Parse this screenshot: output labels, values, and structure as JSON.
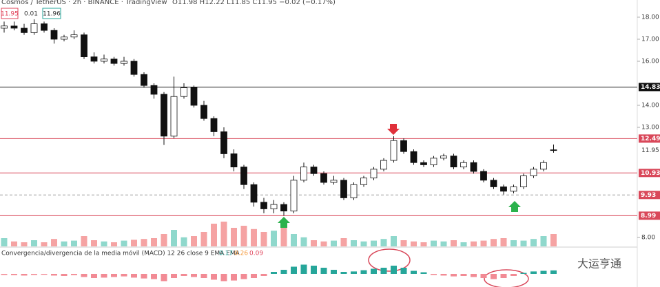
{
  "chart_data": {
    "type": "candlestick",
    "title": "Cosmos / TetherUS · 2h · BINANCE · TradingView",
    "ohlc_text": "O11.98 H12.22 L11.85 C11.95 −0.02 (−0.17%)",
    "quote_boxes": [
      "11.95",
      "0.01",
      "11.96"
    ],
    "ylim": [
      7.69,
      18.78
    ],
    "yticks": [
      {
        "value": 8,
        "label": "8.00"
      },
      {
        "value": 13,
        "label": "13.00"
      },
      {
        "value": 14,
        "label": "14.00"
      },
      {
        "value": 16,
        "label": "16.00"
      },
      {
        "value": 17,
        "label": "17.00"
      },
      {
        "value": 18,
        "label": "18.00"
      }
    ],
    "up_color": "#ffffff",
    "down_color": "#111111",
    "wick_color": "#111111",
    "open": [
      17.5,
      17.6,
      17.5,
      17.3,
      17.7,
      17.4,
      17.0,
      17.1,
      17.2,
      16.2,
      16.0,
      16.1,
      15.9,
      16.0,
      15.4,
      14.9,
      14.5,
      12.6,
      14.4,
      14.8,
      14.0,
      13.4,
      12.8,
      11.8,
      11.2,
      10.4,
      9.6,
      9.3,
      9.5,
      9.2,
      10.6,
      11.2,
      10.9,
      10.5,
      10.6,
      9.8,
      10.4,
      10.7,
      11.1,
      11.5,
      12.4,
      11.9,
      11.4,
      11.3,
      11.6,
      11.7,
      11.2,
      11.4,
      11.0,
      10.6,
      10.3,
      10.1,
      10.3,
      10.8,
      11.1,
      11.98
    ],
    "high": [
      17.8,
      17.8,
      17.7,
      17.9,
      17.8,
      17.5,
      17.2,
      17.4,
      17.3,
      16.4,
      16.3,
      16.2,
      16.2,
      16.1,
      15.5,
      15.0,
      14.6,
      15.3,
      15.0,
      14.9,
      14.2,
      13.5,
      13.0,
      12.0,
      11.3,
      10.5,
      9.8,
      9.7,
      9.6,
      10.8,
      11.4,
      11.3,
      11.0,
      10.8,
      10.7,
      10.5,
      10.8,
      11.2,
      11.6,
      12.6,
      12.5,
      12.0,
      11.5,
      11.7,
      11.8,
      11.8,
      11.5,
      11.5,
      11.1,
      10.7,
      10.4,
      10.4,
      10.9,
      11.2,
      11.5,
      12.22
    ],
    "low": [
      17.3,
      17.4,
      17.2,
      17.2,
      17.3,
      16.8,
      16.9,
      17.0,
      16.1,
      15.9,
      15.9,
      15.8,
      15.8,
      15.3,
      14.8,
      14.3,
      12.2,
      12.5,
      14.3,
      13.9,
      13.3,
      12.6,
      11.6,
      11.0,
      10.2,
      9.4,
      9.1,
      9.1,
      8.99,
      9.1,
      10.5,
      10.8,
      10.4,
      10.4,
      9.7,
      9.7,
      10.3,
      10.6,
      11.0,
      11.4,
      11.8,
      11.3,
      11.2,
      11.2,
      11.5,
      11.1,
      11.1,
      10.9,
      10.5,
      10.2,
      9.95,
      10.0,
      10.2,
      10.7,
      11.0,
      11.85
    ],
    "close": [
      17.6,
      17.5,
      17.3,
      17.7,
      17.4,
      17.0,
      17.1,
      17.2,
      16.2,
      16.0,
      16.1,
      15.9,
      16.0,
      15.4,
      14.9,
      14.5,
      12.6,
      14.4,
      14.8,
      14.0,
      13.4,
      12.8,
      11.8,
      11.2,
      10.4,
      9.6,
      9.3,
      9.5,
      9.2,
      10.6,
      11.2,
      10.9,
      10.5,
      10.6,
      9.8,
      10.4,
      10.7,
      11.1,
      11.5,
      12.4,
      11.9,
      11.4,
      11.3,
      11.6,
      11.7,
      11.2,
      11.4,
      11.0,
      10.6,
      10.3,
      10.1,
      10.3,
      10.8,
      11.1,
      11.4,
      11.95
    ],
    "current_price": 11.95,
    "levels": [
      {
        "value": 14.83,
        "color": "#111111"
      },
      {
        "value": 12.49,
        "color": "#d9485a"
      },
      {
        "value": 10.93,
        "color": "#d9485a"
      },
      {
        "value": 9.93,
        "color": "#d9485a",
        "dashed": true
      },
      {
        "value": 8.99,
        "color": "#d9485a"
      }
    ],
    "volume": {
      "up_color": "#8fd8cc",
      "down_color": "#f5a3a3",
      "values": [
        20,
        12,
        10,
        15,
        10,
        18,
        12,
        14,
        25,
        15,
        12,
        10,
        14,
        16,
        18,
        20,
        30,
        40,
        22,
        25,
        35,
        55,
        60,
        45,
        50,
        42,
        35,
        38,
        45,
        30,
        22,
        15,
        12,
        14,
        20,
        15,
        12,
        14,
        18,
        25,
        15,
        12,
        10,
        14,
        12,
        15,
        10,
        12,
        14,
        18,
        20,
        15,
        14,
        18,
        25,
        30
      ]
    },
    "macd": {
      "title": "Convergencia/divergencia de la media móvil (MACD) 12 26 close 9 EMA EMA",
      "legend_values": [
        {
          "value": 0.17,
          "color": "#26a69a"
        },
        {
          "value": 0.26,
          "color": "#f59a3c"
        },
        {
          "value": 0.09,
          "color": "#e0435a"
        }
      ],
      "ylim": [
        -0.6,
        0.6
      ],
      "pos_color": "#26a69a",
      "neg_color": "#f28b95",
      "histogram": [
        -0.05,
        -0.06,
        -0.08,
        -0.05,
        -0.04,
        -0.08,
        -0.1,
        -0.06,
        -0.15,
        -0.2,
        -0.18,
        -0.15,
        -0.12,
        -0.18,
        -0.22,
        -0.25,
        -0.35,
        -0.2,
        -0.1,
        -0.15,
        -0.2,
        -0.28,
        -0.35,
        -0.32,
        -0.25,
        -0.2,
        -0.1,
        0.1,
        0.2,
        0.35,
        0.45,
        0.4,
        0.3,
        0.2,
        0.1,
        0.12,
        0.18,
        0.25,
        0.3,
        0.4,
        0.3,
        0.15,
        0.08,
        -0.05,
        -0.08,
        -0.12,
        -0.1,
        -0.15,
        -0.2,
        -0.25,
        -0.2,
        -0.1,
        0.05,
        0.12,
        0.15,
        0.17
      ]
    },
    "watermark": "大运亨通"
  }
}
